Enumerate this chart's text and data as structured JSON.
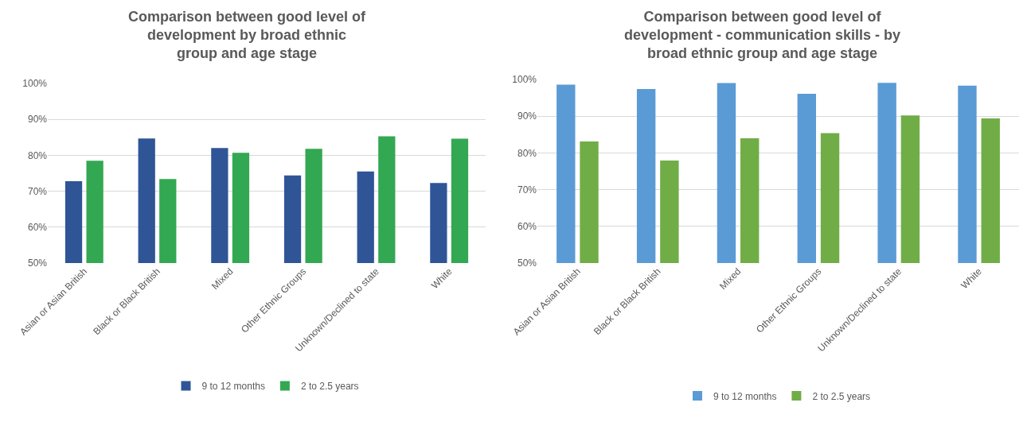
{
  "chart_data": [
    {
      "type": "bar",
      "title": "Comparison between good level of development by broad ethnic group and age stage",
      "categories": [
        "Asian or Asian British",
        "Black or Black British",
        "Mixed",
        "Other Ethnic Groups",
        "Unknown/Declined to state",
        "White"
      ],
      "series": [
        {
          "name": "9 to 12 months",
          "color": "#2f5597",
          "values": [
            72.8,
            84.7,
            82,
            74.4,
            75.5,
            72.3
          ]
        },
        {
          "name": "2 to 2.5 years",
          "color": "#33a852",
          "values": [
            78.5,
            73.4,
            80.7,
            81.8,
            85.3,
            84.6
          ]
        }
      ],
      "ylim": [
        50,
        100
      ],
      "yticks": [
        {
          "value": 50,
          "label": "50%"
        },
        {
          "value": 60,
          "label": "60%"
        },
        {
          "value": 70,
          "label": "70%"
        },
        {
          "value": 80,
          "label": "80%"
        },
        {
          "value": 90,
          "label": "90%"
        },
        {
          "value": 100,
          "label": "100%"
        }
      ],
      "grid": "y",
      "legend": "bottom"
    },
    {
      "type": "bar",
      "title": "Comparison between good level of development - communication skills - by broad ethnic group and age stage",
      "categories": [
        "Asian or Asian British",
        "Black or Black British",
        "Mixed",
        "Other Ethnic Groups",
        "Unknown/Declined to state",
        "White"
      ],
      "series": [
        {
          "name": "9 to 12 months",
          "color": "#5b9bd5",
          "values": [
            98.6,
            97.4,
            99,
            96.1,
            99.1,
            98.3
          ]
        },
        {
          "name": "2 to 2.5 years",
          "color": "#70ad47",
          "values": [
            83.1,
            77.9,
            84,
            85.4,
            90.2,
            89.4
          ]
        }
      ],
      "ylim": [
        50,
        100
      ],
      "yticks": [
        {
          "value": 50,
          "label": "50%"
        },
        {
          "value": 60,
          "label": "60%"
        },
        {
          "value": 70,
          "label": "70%"
        },
        {
          "value": 80,
          "label": "80%"
        },
        {
          "value": 90,
          "label": "90%"
        },
        {
          "value": 100,
          "label": "100%"
        }
      ],
      "grid": "y",
      "legend": "bottom"
    }
  ]
}
